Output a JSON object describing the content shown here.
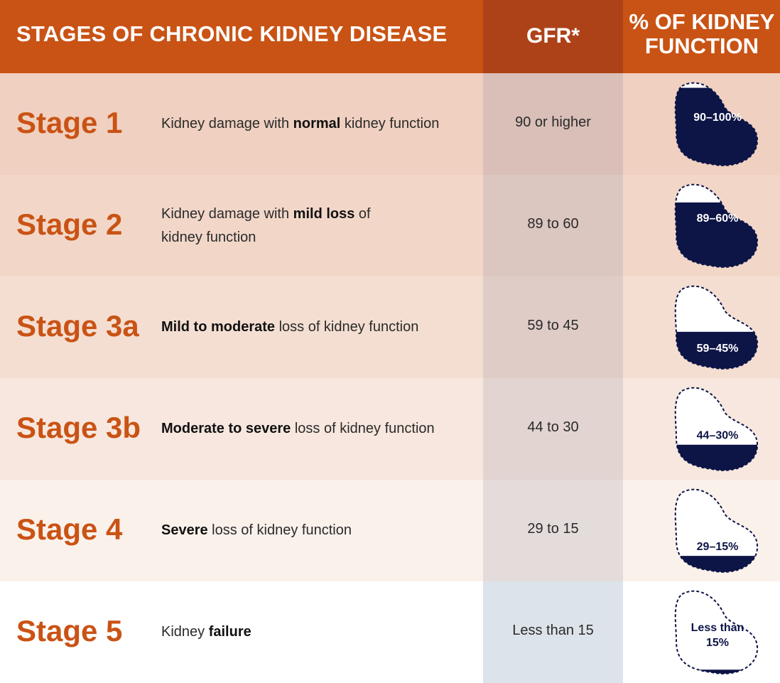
{
  "header": {
    "title": "STAGES OF CHRONIC KIDNEY DISEASE",
    "gfr": "GFR*",
    "pct_line1": "% OF KIDNEY",
    "pct_line2": "FUNCTION"
  },
  "colors": {
    "header_bg": "#c95314",
    "header_gfr_bg": "#ad4219",
    "stage_text": "#c95314",
    "kidney_fill": "#0d1446"
  },
  "rows": [
    {
      "stage": "Stage 1",
      "desc_pre": "Kidney damage with ",
      "desc_bold": "normal",
      "desc_post": " kidney function",
      "gfr": "90 or higher",
      "pct": "90–100%",
      "fill_fraction": 0.93,
      "row_bg": "#f0d0c0",
      "gfr_bg": "#d9bfb8"
    },
    {
      "stage": "Stage 2",
      "desc_pre": "Kidney damage with ",
      "desc_bold": "mild loss",
      "desc_post": " of kidney function",
      "gfr": "89 to 60",
      "pct": "89–60%",
      "fill_fraction": 0.78,
      "row_bg": "#f2d7c9",
      "gfr_bg": "#dcc6c0"
    },
    {
      "stage": "Stage 3a",
      "desc_pre": "",
      "desc_bold": "Mild to moderate",
      "desc_post": " loss of kidney function",
      "gfr": "59 to 45",
      "pct": "59–45%",
      "fill_fraction": 0.46,
      "row_bg": "#f4ded2",
      "gfr_bg": "#dfccc7"
    },
    {
      "stage": "Stage 3b",
      "desc_pre": "",
      "desc_bold": "Moderate to severe",
      "desc_post": " loss of kidney function",
      "gfr": "44 to 30",
      "pct": "44–30%",
      "fill_fraction": 0.33,
      "row_bg": "#f7e7de",
      "gfr_bg": "#e2d4d1"
    },
    {
      "stage": "Stage 4",
      "desc_pre": "",
      "desc_bold": "Severe",
      "desc_post": " loss of kidney function",
      "gfr": "29 to 15",
      "pct": "29–15%",
      "fill_fraction": 0.22,
      "row_bg": "#fbf1eb",
      "gfr_bg": "#e4dcdb"
    },
    {
      "stage": "Stage 5",
      "desc_pre": "Kidney ",
      "desc_bold": "failure",
      "desc_post": "",
      "gfr": "Less than 15",
      "pct": "Less than 15%",
      "fill_fraction": 0.08,
      "row_bg": "#ffffff",
      "gfr_bg": "#dde3ea"
    }
  ]
}
